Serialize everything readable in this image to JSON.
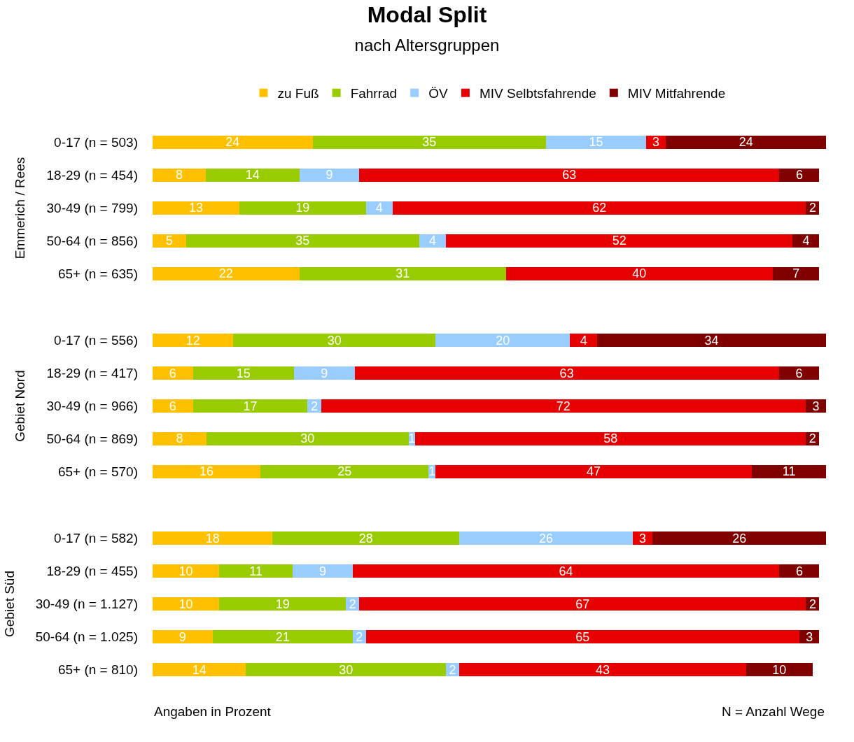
{
  "chart_data": [
    {
      "type": "bar",
      "orientation": "horizontal",
      "stacked": true,
      "title": "Modal Split",
      "subtitle": "nach Altersgruppen",
      "ylabel": "Emmerich / Rees",
      "legend": "top",
      "tick_labels": "y",
      "data_labels": true,
      "categories": [
        "0-17 (n = 503)",
        "18-29 (n = 454)",
        "30-49 (n = 799)",
        "50-64 (n = 856)",
        "65+ (n = 635)"
      ],
      "series": [
        {
          "name": "zu Fuß",
          "color": "#ffc000",
          "values": [
            24,
            8,
            13,
            5,
            22
          ]
        },
        {
          "name": "Fahrrad",
          "color": "#99cc00",
          "values": [
            35,
            14,
            19,
            35,
            31
          ]
        },
        {
          "name": "ÖV",
          "color": "#99ccff",
          "values": [
            15,
            9,
            4,
            4,
            0
          ],
          "value_labels": [
            "15",
            "9",
            "4",
            "4",
            null
          ]
        },
        {
          "name": "MIV Selbtsfahrende",
          "color": "#e60000",
          "values": [
            3,
            63,
            62,
            52,
            40
          ]
        },
        {
          "name": "MIV Mitfahrende",
          "color": "#800000",
          "values": [
            24,
            6,
            2,
            4,
            7
          ]
        }
      ]
    },
    {
      "type": "bar",
      "orientation": "horizontal",
      "stacked": true,
      "ylabel": "Gebiet Nord",
      "tick_labels": "y",
      "data_labels": true,
      "categories": [
        "0-17 (n = 556)",
        "18-29 (n = 417)",
        "30-49 (n = 966)",
        "50-64 (n = 869)",
        "65+ (n = 570)"
      ],
      "series": [
        {
          "color": "#ffc000",
          "values": [
            12,
            6,
            6,
            8,
            16
          ]
        },
        {
          "color": "#99cc00",
          "values": [
            30,
            15,
            17,
            30,
            25
          ]
        },
        {
          "color": "#99ccff",
          "values": [
            20,
            9,
            2,
            1,
            1
          ]
        },
        {
          "color": "#e60000",
          "values": [
            4,
            63,
            72,
            58,
            47
          ]
        },
        {
          "color": "#800000",
          "values": [
            34,
            6,
            3,
            2,
            11
          ]
        }
      ]
    },
    {
      "type": "bar",
      "orientation": "horizontal",
      "stacked": true,
      "ylabel": "Gebiet Süd",
      "tick_labels": "y",
      "data_labels": true,
      "categories": [
        "0-17 (n = 582)",
        "18-29 (n = 455)",
        "30-49 (n = 1.127)",
        "50-64 (n = 1.025)",
        "65+ (n = 810)"
      ],
      "series": [
        {
          "color": "#ffc000",
          "values": [
            18,
            10,
            10,
            9,
            14
          ]
        },
        {
          "color": "#99cc00",
          "values": [
            28,
            11,
            19,
            21,
            30
          ]
        },
        {
          "color": "#99ccff",
          "values": [
            26,
            9,
            2,
            2,
            2
          ]
        },
        {
          "color": "#e60000",
          "values": [
            3,
            64,
            67,
            65,
            43
          ]
        },
        {
          "color": "#800000",
          "values": [
            26,
            6,
            2,
            3,
            10
          ]
        }
      ],
      "annotations": [
        "Angaben in Prozent",
        "N = Anzahl Wege"
      ]
    }
  ]
}
